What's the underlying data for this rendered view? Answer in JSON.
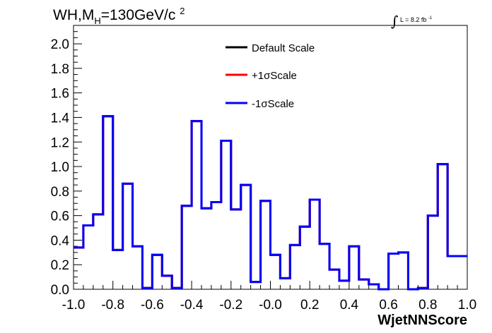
{
  "chart_data": {
    "type": "step",
    "title": {
      "prefix": "WH,M",
      "sub": "H",
      "mid": "=130GeV/c",
      "sup": "2"
    },
    "luminosity": {
      "integral": "∫",
      "text": "L = 8.2 fb",
      "sup": "-1"
    },
    "xlabel": "WjetNNScore",
    "xlim": [
      -1.0,
      1.0
    ],
    "ylim": [
      0.0,
      2.15
    ],
    "xticks": [
      "-1.0",
      "-0.8",
      "-0.6",
      "-0.4",
      "-0.2",
      "-0.0",
      "0.2",
      "0.4",
      "0.6",
      "0.8",
      "1.0"
    ],
    "yticks": [
      "0.0",
      "0.2",
      "0.4",
      "0.6",
      "0.8",
      "1.0",
      "1.2",
      "1.4",
      "1.6",
      "1.8",
      "2.0"
    ],
    "bin_edges": [
      -1.0,
      -0.95,
      -0.9,
      -0.85,
      -0.8,
      -0.75,
      -0.7,
      -0.65,
      -0.6,
      -0.55,
      -0.5,
      -0.45,
      -0.4,
      -0.35,
      -0.3,
      -0.25,
      -0.2,
      -0.15,
      -0.1,
      -0.05,
      0.0,
      0.05,
      0.1,
      0.15,
      0.2,
      0.25,
      0.3,
      0.35,
      0.4,
      0.45,
      0.5,
      0.55,
      0.6,
      0.65,
      0.7,
      0.75,
      0.8,
      0.85,
      0.9,
      0.95,
      1.0
    ],
    "legend_position": "top-center",
    "series": [
      {
        "name": "Default Scale",
        "color": "#000000",
        "values": [
          0.34,
          0.52,
          0.61,
          1.41,
          0.32,
          0.86,
          0.35,
          0.01,
          0.28,
          0.11,
          0.01,
          0.68,
          1.37,
          0.66,
          0.71,
          1.21,
          0.65,
          0.85,
          0.06,
          0.72,
          0.28,
          0.09,
          0.36,
          0.51,
          0.73,
          0.37,
          0.16,
          0.07,
          0.35,
          0.08,
          0.04,
          0.0,
          0.29,
          0.3,
          0.0,
          0.01,
          0.6,
          1.02,
          0.27,
          0.27
        ]
      },
      {
        "name": "+1σScale",
        "color": "#ff0000",
        "values": [
          0.34,
          0.52,
          0.61,
          1.41,
          0.32,
          0.86,
          0.35,
          0.01,
          0.28,
          0.11,
          0.01,
          0.68,
          1.37,
          0.66,
          0.71,
          1.21,
          0.65,
          0.85,
          0.06,
          0.72,
          0.28,
          0.09,
          0.36,
          0.51,
          0.73,
          0.37,
          0.16,
          0.07,
          0.35,
          0.08,
          0.04,
          0.0,
          0.29,
          0.3,
          0.0,
          0.01,
          0.6,
          1.02,
          0.27,
          0.27
        ]
      },
      {
        "name": "-1σScale",
        "color": "#0000ff",
        "values": [
          0.34,
          0.52,
          0.61,
          1.41,
          0.32,
          0.86,
          0.35,
          0.01,
          0.28,
          0.11,
          0.01,
          0.68,
          1.37,
          0.66,
          0.71,
          1.21,
          0.65,
          0.85,
          0.06,
          0.72,
          0.28,
          0.09,
          0.36,
          0.51,
          0.73,
          0.37,
          0.16,
          0.07,
          0.35,
          0.08,
          0.04,
          0.0,
          0.29,
          0.3,
          0.0,
          0.01,
          0.6,
          1.02,
          0.27,
          0.27
        ]
      }
    ]
  }
}
